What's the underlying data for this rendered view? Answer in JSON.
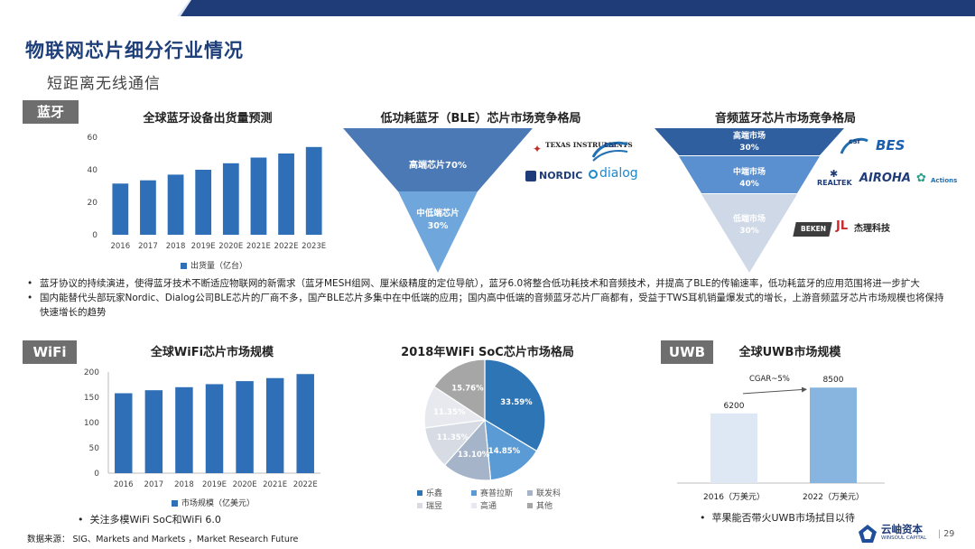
{
  "header": {
    "title": "物联网芯片细分行业情况",
    "subtitle": "短距离无线通信"
  },
  "bluetooth": {
    "tag": "蓝牙",
    "shipments_chart": {
      "title": "全球蓝牙设备出货量预测",
      "legend": "出货量（亿台）"
    },
    "ble_market": {
      "title": "低功耗蓝牙（BLE）芯片市场竞争格局",
      "high_label": "高端芯片70%",
      "mid_label": "中低端芯片",
      "mid_value": "30%",
      "logos": [
        "TEXAS INSTRUMENTS",
        "csr",
        "NORDIC",
        "dialog"
      ]
    },
    "audio_market": {
      "title": "音频蓝牙芯片市场竞争格局",
      "high_label": "高端市场",
      "high_value": "30%",
      "mid_label": "中端市场",
      "mid_value": "40%",
      "low_label": "低端市场",
      "low_value": "30%",
      "logos_high": [
        "csr",
        "BES"
      ],
      "logos_mid": [
        "REALTEK",
        "AIROHA",
        "Actions"
      ],
      "logos_low": [
        "BEKEN",
        "杰理科技"
      ]
    },
    "notes": [
      "蓝牙协议的持续演进，使得蓝牙技术不断适应物联网的新需求（蓝牙MESH组网、厘米级精度的定位导航），蓝牙6.0将整合低功耗技术和音频技术，并提高了BLE的传输速率，低功耗蓝牙的应用范围将进一步扩大",
      "国内能替代头部玩家Nordic、Dialog公司BLE芯片的厂商不多，国产BLE芯片多集中在中低端的应用；国内高中低端的音频蓝牙芯片厂商都有，受益于TWS耳机销量爆发式的增长，上游音频蓝牙芯片市场规模也将保持快速增长的趋势"
    ]
  },
  "wifi": {
    "tag": "WiFi",
    "market_chart": {
      "title": "全球WiFi芯片市场规模",
      "legend": "市场规模（亿美元）"
    },
    "soc_chart": {
      "title": "2018年WiFi SoC芯片市场格局",
      "legend": [
        "乐鑫",
        "赛普拉斯",
        "联发科",
        "瑞昱",
        "高通",
        "其他"
      ]
    },
    "note": "关注多模WiFi SoC和WiFi 6.0"
  },
  "uwb": {
    "tag": "UWB",
    "market_chart": {
      "title": "全球UWB市场规模",
      "cagr_label": "CGAR~5%"
    },
    "note": "苹果能否带火UWB市场拭目以待"
  },
  "footer": {
    "source": "数据来源：  SIG、Markets and Markets ，Market Research Future",
    "brand_cn": "云岫资本",
    "brand_en": "WINSOUL CAPITAL",
    "page_number": "29"
  },
  "chart_data": [
    {
      "type": "bar",
      "title": "全球蓝牙设备出货量预测",
      "categories": [
        "2016",
        "2017",
        "2018",
        "2019E",
        "2020E",
        "2021E",
        "2022E",
        "2023E"
      ],
      "series": [
        {
          "name": "出货量（亿台）",
          "values": [
            31.5,
            33.5,
            37,
            40,
            44,
            47.5,
            50,
            54
          ]
        }
      ],
      "ylim": [
        0,
        60
      ],
      "yticks": [
        0,
        20,
        40,
        60
      ],
      "color": "#2e6fb7"
    },
    {
      "type": "bar",
      "title": "全球WiFi芯片市场规模",
      "categories": [
        "2016",
        "2017",
        "2018",
        "2019E",
        "2020E",
        "2021E",
        "2022E"
      ],
      "series": [
        {
          "name": "市场规模（亿美元）",
          "values": [
            158,
            164,
            170,
            176,
            182,
            188,
            196
          ]
        }
      ],
      "ylim": [
        0,
        200
      ],
      "yticks": [
        0,
        50,
        100,
        150,
        200
      ],
      "color": "#2e6fb7"
    },
    {
      "type": "pie",
      "title": "2018年WiFi SoC芯片市场格局",
      "labels": [
        "乐鑫",
        "赛普拉斯",
        "联发科",
        "瑞昱",
        "高通",
        "其他"
      ],
      "values": [
        33.59,
        14.85,
        13.1,
        11.35,
        11.35,
        15.76
      ],
      "value_labels": [
        "33.59%",
        "14.85%",
        "13.10%",
        "11.35%",
        "11.35%",
        "15.76%"
      ],
      "colors": [
        "#2e75b6",
        "#5b9bd5",
        "#a5b4c8",
        "#d6dbe4",
        "#e7e9ee",
        "#a6a6a6"
      ]
    },
    {
      "type": "bar",
      "title": "全球UWB市场规模",
      "categories": [
        "2016（万美元）",
        "2022（万美元）"
      ],
      "values": [
        6200,
        8500
      ],
      "value_labels": [
        "6200",
        "8500"
      ],
      "colors": [
        "#dee8f5",
        "#87b5df"
      ]
    }
  ]
}
